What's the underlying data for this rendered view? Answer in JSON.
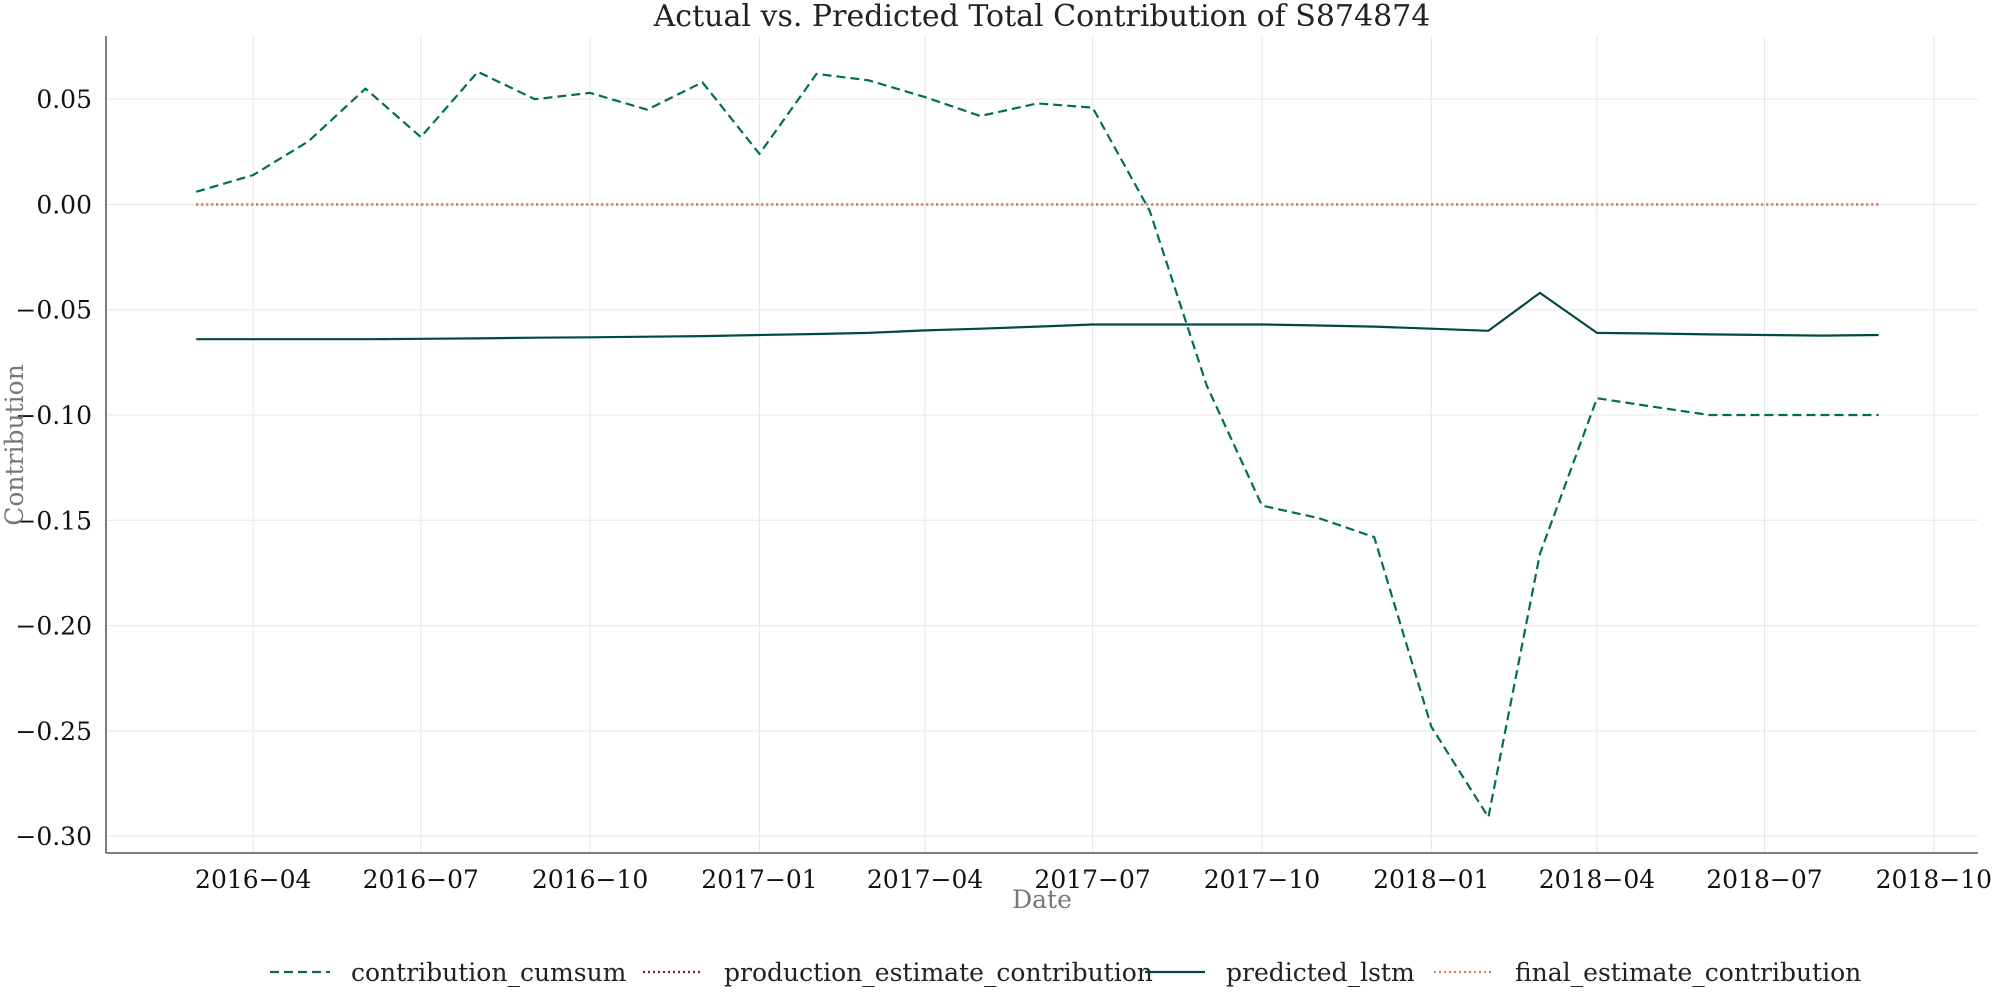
{
  "chart_data": {
    "type": "line",
    "title": "Actual vs. Predicted Total Contribution of S874874",
    "xlabel": "Date",
    "ylabel": "Contribution",
    "xlim": [
      "2016-01-12",
      "2018-10-25"
    ],
    "ylim": [
      -0.308,
      0.08
    ],
    "grid": true,
    "legend_position": "bottom-center",
    "x_ticks": [
      "2016-04-01",
      "2016-07-01",
      "2016-10-01",
      "2017-01-01",
      "2017-04-01",
      "2017-07-01",
      "2017-10-01",
      "2018-01-01",
      "2018-04-01",
      "2018-07-01",
      "2018-10-01"
    ],
    "x_tick_labels": [
      "2016−04",
      "2016−07",
      "2016−10",
      "2017−01",
      "2017−04",
      "2017−07",
      "2017−10",
      "2018−01",
      "2018−04",
      "2018−07",
      "2018−10"
    ],
    "y_ticks": [
      0.05,
      0.0,
      -0.05,
      -0.1,
      -0.15,
      -0.2,
      -0.25,
      -0.3
    ],
    "y_tick_labels": [
      "0.05",
      "0.00",
      "−0.05",
      "−0.10",
      "−0.15",
      "−0.20",
      "−0.25",
      "−0.30"
    ],
    "x": [
      "2016-03-01",
      "2016-04-01",
      "2016-05-01",
      "2016-06-01",
      "2016-07-01",
      "2016-08-01",
      "2016-09-01",
      "2016-10-01",
      "2016-11-01",
      "2016-12-01",
      "2017-01-01",
      "2017-02-01",
      "2017-03-01",
      "2017-04-01",
      "2017-05-01",
      "2017-06-01",
      "2017-07-01",
      "2017-08-01",
      "2017-09-01",
      "2017-10-01",
      "2017-11-01",
      "2017-12-01",
      "2018-01-01",
      "2018-02-01",
      "2018-03-01",
      "2018-04-01",
      "2018-05-01",
      "2018-06-01",
      "2018-07-01",
      "2018-08-01",
      "2018-09-01"
    ],
    "series": [
      {
        "name": "contribution_cumsum",
        "color": "#006d5b",
        "style": "dashed",
        "values": [
          0.006,
          0.014,
          0.03,
          0.055,
          0.032,
          0.063,
          0.05,
          0.053,
          0.045,
          0.058,
          0.024,
          0.062,
          0.059,
          0.051,
          0.042,
          0.048,
          0.046,
          -0.003,
          -0.086,
          -0.143,
          -0.149,
          -0.158,
          -0.248,
          -0.291,
          -0.166,
          -0.092,
          -0.096,
          -0.1,
          -0.1,
          -0.1,
          -0.1
        ]
      },
      {
        "name": "production_estimate_contribution",
        "color": "#8b1a1a",
        "style": "dotted",
        "values": [
          0,
          0,
          0,
          0,
          0,
          0,
          0,
          0,
          0,
          0,
          0,
          0,
          0,
          0,
          0,
          0,
          0,
          0,
          0,
          0,
          0,
          0,
          0,
          0,
          0,
          0,
          0,
          0,
          0,
          0,
          0
        ]
      },
      {
        "name": "predicted_lstm",
        "color": "#004a45",
        "style": "solid",
        "values": [
          -0.064,
          -0.064,
          -0.064,
          -0.064,
          -0.0638,
          -0.0636,
          -0.0633,
          -0.0631,
          -0.0628,
          -0.0625,
          -0.062,
          -0.0615,
          -0.061,
          -0.0598,
          -0.059,
          -0.058,
          -0.057,
          -0.057,
          -0.057,
          -0.057,
          -0.0575,
          -0.058,
          -0.059,
          -0.06,
          -0.042,
          -0.061,
          -0.0613,
          -0.0617,
          -0.062,
          -0.0623,
          -0.062
        ]
      },
      {
        "name": "final_estimate_contribution",
        "color": "#e07a5f",
        "style": "dotted",
        "values": [
          0,
          0,
          0,
          0,
          0,
          0,
          0,
          0,
          0,
          0,
          0,
          0,
          0,
          0,
          0,
          0,
          0,
          0,
          0,
          0,
          0,
          0,
          0,
          0,
          0,
          0,
          0,
          0,
          0,
          0,
          0
        ]
      }
    ]
  }
}
